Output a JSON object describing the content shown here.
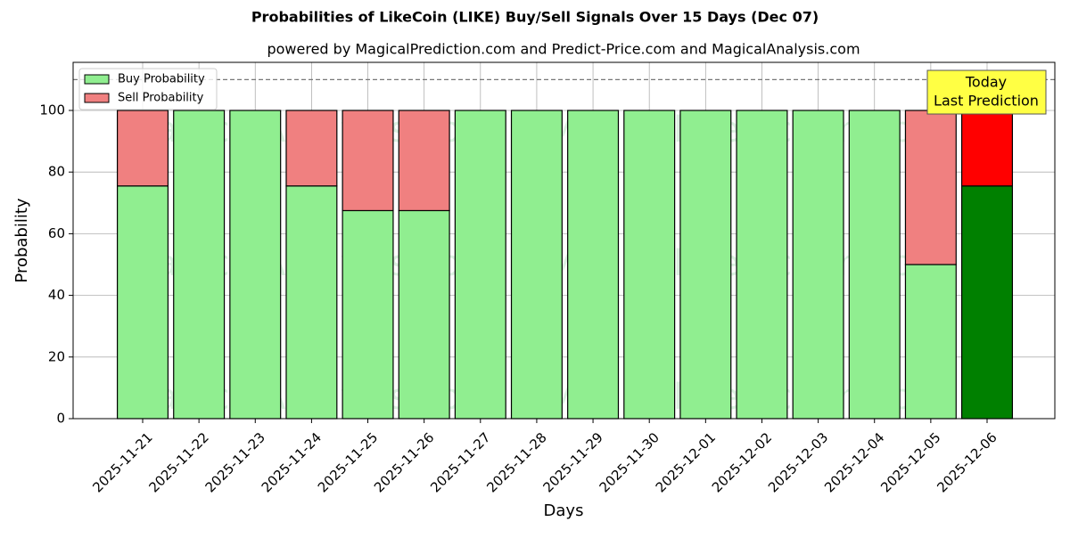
{
  "chart_data": {
    "type": "stacked_bar",
    "title": "Probabilities of LikeCoin (LIKE) Buy/Sell Signals Over 15 Days (Dec 07)",
    "subtitle": "powered by MagicalPrediction.com and Predict-Price.com and MagicalAnalysis.com",
    "x_label": "Days",
    "y_label": "Probability",
    "categories": [
      "2025-11-21",
      "2025-11-22",
      "2025-11-23",
      "2025-11-24",
      "2025-11-25",
      "2025-11-26",
      "2025-11-27",
      "2025-11-28",
      "2025-11-29",
      "2025-11-30",
      "2025-12-01",
      "2025-12-02",
      "2025-12-03",
      "2025-12-04",
      "2025-12-05",
      "2025-12-06"
    ],
    "series": [
      {
        "name": "Buy Probability",
        "color": "#90ee90",
        "last_color": "#008000",
        "values": [
          75.5,
          100,
          100,
          75.5,
          67.5,
          67.5,
          100,
          100,
          100,
          100,
          100,
          100,
          100,
          100,
          50,
          75.5
        ]
      },
      {
        "name": "Sell Probability",
        "color": "#f08080",
        "last_color": "#ff0000",
        "values": [
          24.5,
          0,
          0,
          24.5,
          32.5,
          32.5,
          0,
          0,
          0,
          0,
          0,
          0,
          0,
          0,
          50,
          24.5
        ]
      }
    ],
    "ylim": [
      0,
      115.6
    ],
    "yticks": [
      0,
      20,
      40,
      60,
      80,
      100
    ],
    "reference_line": 110,
    "annotation": [
      "Today",
      "Last Prediction"
    ],
    "watermarks": [
      "MagicalAnalysis.com",
      "MagicalPrediction.com"
    ],
    "grid": true,
    "legend": "upper-left"
  }
}
